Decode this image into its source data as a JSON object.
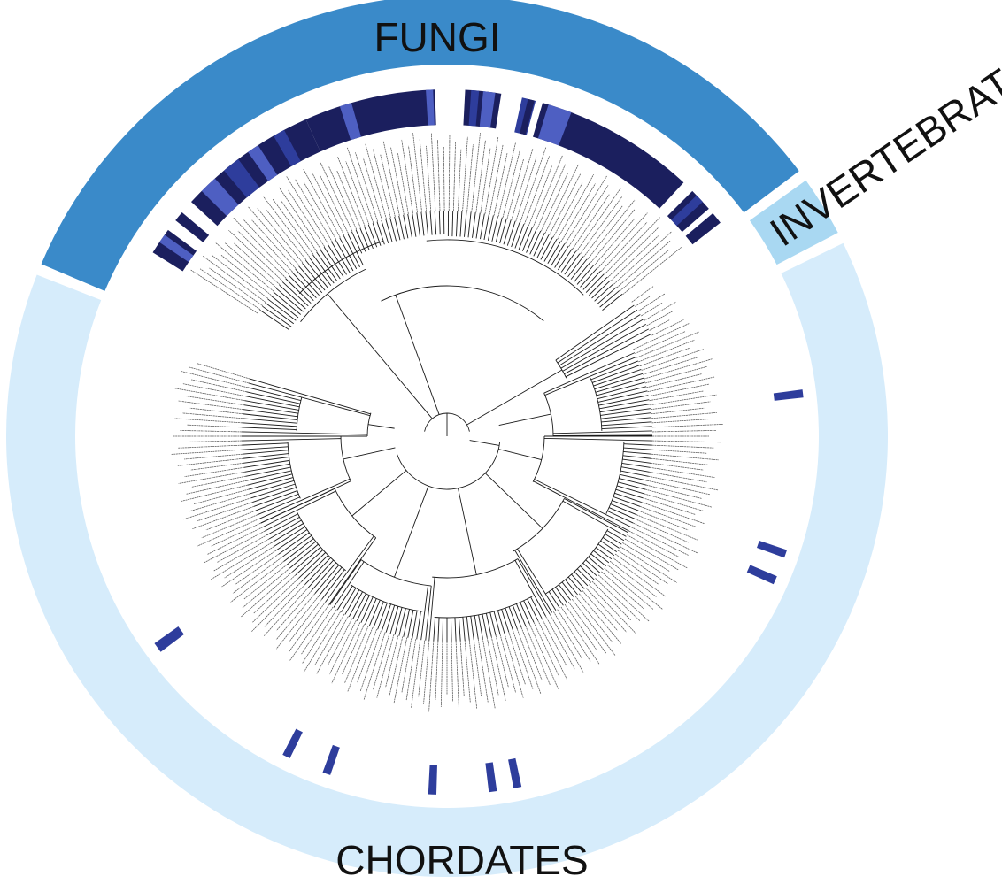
{
  "figure": {
    "groups": [
      {
        "label": "FUNGI",
        "color": "#3a8ac9"
      },
      {
        "label": "INVERTEBRATES",
        "color": "#a9d8f2"
      },
      {
        "label": "CHORDATES",
        "color": "#d6ecfb"
      }
    ],
    "heat_colors": {
      "dark": "#1b1f5e",
      "medium": "#2e3d9c",
      "light": "#4e5fc2"
    },
    "branch_color": "#1a1a1a"
  }
}
